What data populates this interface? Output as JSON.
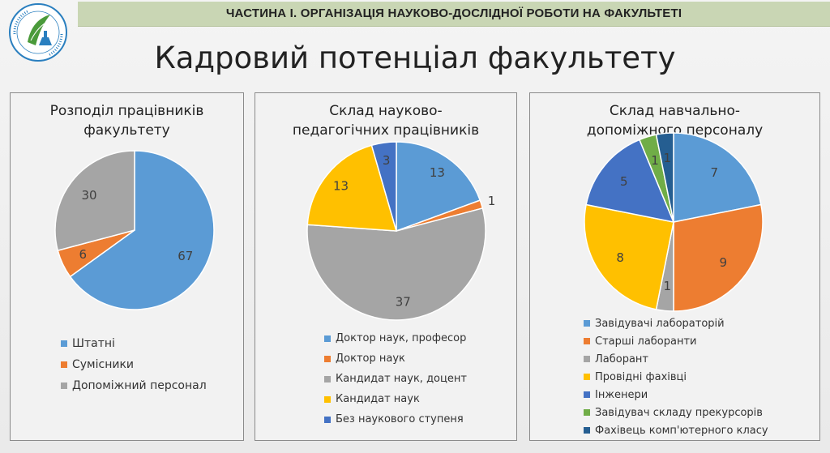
{
  "header": {
    "title": "ЧАСТИНА І. ОРГАНІЗАЦІЯ НАУКОВО-ДОСЛІДНОЇ РОБОТИ НА ФАКУЛЬТЕТІ"
  },
  "page": {
    "title": "Кадровий потенціал факультету"
  },
  "colors": {
    "blue": "#5b9bd5",
    "orange": "#ed7d31",
    "gray": "#a5a5a5",
    "yellow": "#ffc000",
    "darkblue": "#4472c4",
    "green": "#70ad47",
    "navy": "#255e91"
  },
  "logo": {
    "icon": "university-emblem-icon"
  },
  "chart_data": [
    {
      "type": "pie",
      "title": "Розподіл працівників факультету",
      "categories": [
        "Штатні",
        "Сумісники",
        "Допоміжний персонал"
      ],
      "values": [
        67,
        6,
        30
      ],
      "colors": [
        "#5b9bd5",
        "#ed7d31",
        "#a5a5a5"
      ],
      "legend": "bottom"
    },
    {
      "type": "pie",
      "title": "Склад науково-педагогічних працівників",
      "categories": [
        "Доктор наук, професор",
        "Доктор наук",
        "Кандидат наук, доцент",
        "Кандидат наук",
        "Без наукового ступеня"
      ],
      "values": [
        13,
        1,
        37,
        13,
        3
      ],
      "colors": [
        "#5b9bd5",
        "#ed7d31",
        "#a5a5a5",
        "#ffc000",
        "#4472c4"
      ],
      "legend": "bottom"
    },
    {
      "type": "pie",
      "title": "Склад навчально-допоміжного персоналу",
      "categories": [
        "Завідувачі лабораторій",
        "Старші лаборанти",
        "Лаборант",
        "Провідні фахівці",
        "Інженери",
        "Завідувач складу прекурсорів",
        "Фахівець комп'ютерного класу"
      ],
      "values": [
        7,
        9,
        1,
        8,
        5,
        1,
        1
      ],
      "colors": [
        "#5b9bd5",
        "#ed7d31",
        "#a5a5a5",
        "#ffc000",
        "#4472c4",
        "#70ad47",
        "#255e91"
      ],
      "legend": "bottom"
    }
  ]
}
